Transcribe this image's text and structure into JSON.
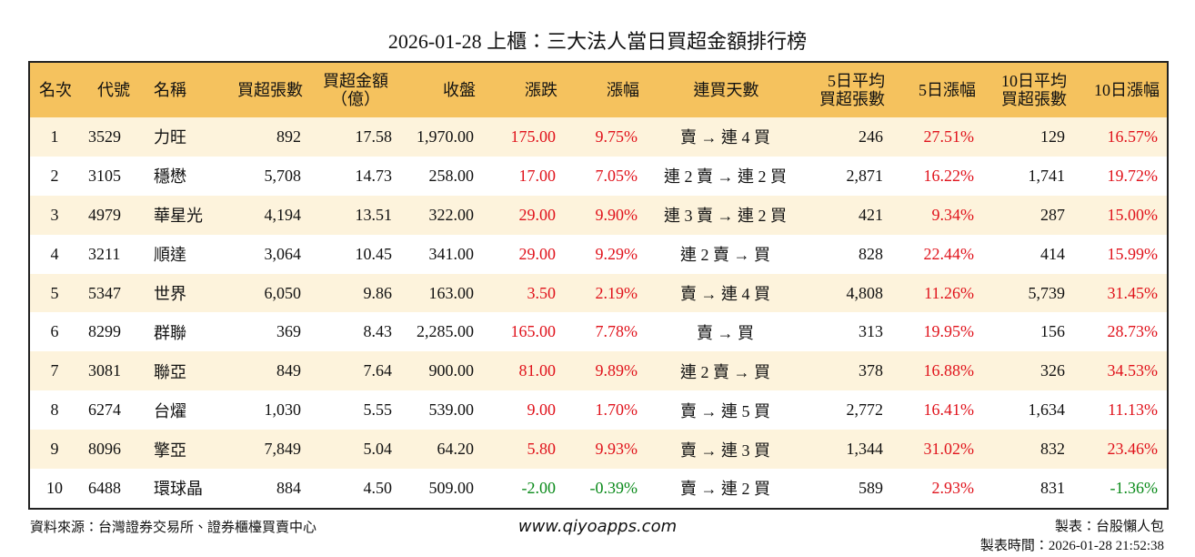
{
  "header": {
    "title": "2026-01-28 上櫃：三大法人當日買超金額排行榜"
  },
  "table": {
    "headers": [
      "名次",
      "代號",
      "名稱",
      "買超張數",
      "買超金額\n（億）",
      "收盤",
      "漲跌",
      "漲幅",
      "連買天數",
      "5日平均\n買超張數",
      "5日漲幅",
      "10日平均\n買超張數",
      "10日漲幅"
    ],
    "rows": [
      [
        "1",
        "3529",
        "力旺",
        "892",
        "17.58",
        "1,970.00",
        "175.00",
        "9.75%",
        "賣 → 連 4 買",
        "246",
        "27.51%",
        "129",
        "16.57%"
      ],
      [
        "2",
        "3105",
        "穩懋",
        "5,708",
        "14.73",
        "258.00",
        "17.00",
        "7.05%",
        "連 2 賣 → 連 2 買",
        "2,871",
        "16.22%",
        "1,741",
        "19.72%"
      ],
      [
        "3",
        "4979",
        "華星光",
        "4,194",
        "13.51",
        "322.00",
        "29.00",
        "9.90%",
        "連 3 賣 → 連 2 買",
        "421",
        "9.34%",
        "287",
        "15.00%"
      ],
      [
        "4",
        "3211",
        "順達",
        "3,064",
        "10.45",
        "341.00",
        "29.00",
        "9.29%",
        "連 2 賣 → 買",
        "828",
        "22.44%",
        "414",
        "15.99%"
      ],
      [
        "5",
        "5347",
        "世界",
        "6,050",
        "9.86",
        "163.00",
        "3.50",
        "2.19%",
        "賣 → 連 4 買",
        "4,808",
        "11.26%",
        "5,739",
        "31.45%"
      ],
      [
        "6",
        "8299",
        "群聯",
        "369",
        "8.43",
        "2,285.00",
        "165.00",
        "7.78%",
        "賣 → 買",
        "313",
        "19.95%",
        "156",
        "28.73%"
      ],
      [
        "7",
        "3081",
        "聯亞",
        "849",
        "7.64",
        "900.00",
        "81.00",
        "9.89%",
        "連 2 賣 → 買",
        "378",
        "16.88%",
        "326",
        "34.53%"
      ],
      [
        "8",
        "6274",
        "台燿",
        "1,030",
        "5.55",
        "539.00",
        "9.00",
        "1.70%",
        "賣 → 連 5 買",
        "2,772",
        "16.41%",
        "1,634",
        "11.13%"
      ],
      [
        "9",
        "8096",
        "擎亞",
        "7,849",
        "5.04",
        "64.20",
        "5.80",
        "9.93%",
        "賣 → 連 3 買",
        "1,344",
        "31.02%",
        "832",
        "23.46%"
      ],
      [
        "10",
        "6488",
        "環球晶",
        "884",
        "4.50",
        "509.00",
        "-2.00",
        "-0.39%",
        "賣 → 連 2 買",
        "589",
        "2.93%",
        "831",
        "-1.36%"
      ]
    ]
  },
  "footer": {
    "source": "資料來源：台灣證券交易所、證券櫃檯買賣中心",
    "url": "www.qiyoapps.com",
    "maker": "製表：台股懶人包",
    "time": "製表時間：2026-01-28 21:52:38"
  }
}
